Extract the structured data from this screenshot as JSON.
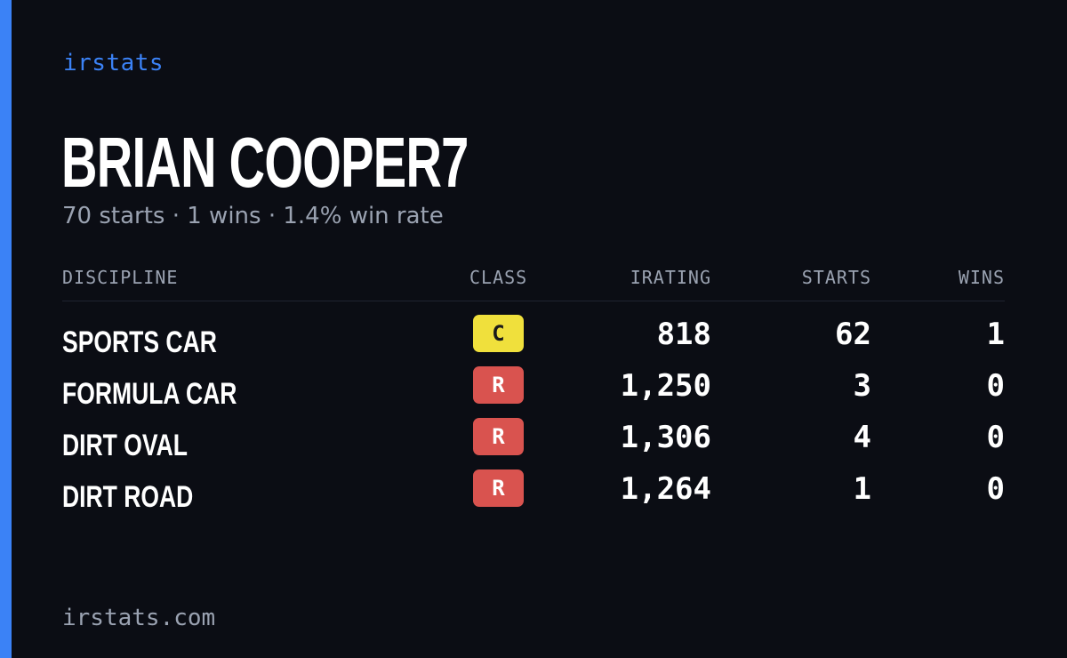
{
  "brand": "irstats",
  "accent_color": "#3b82f6",
  "player": {
    "name": "BRIAN COOPER7"
  },
  "summary": {
    "starts": "70 starts",
    "wins": "1 wins",
    "win_rate": "1.4% win rate",
    "separator": "·"
  },
  "table": {
    "headers": {
      "discipline": "DISCIPLINE",
      "class": "CLASS",
      "irating": "IRATING",
      "starts": "STARTS",
      "wins": "WINS"
    },
    "rows": [
      {
        "discipline": "SPORTS CAR",
        "class": "C",
        "class_color": "#f0e03c",
        "irating": "818",
        "starts": "62",
        "wins": "1"
      },
      {
        "discipline": "FORMULA CAR",
        "class": "R",
        "class_color": "#d9534f",
        "irating": "1,250",
        "starts": "3",
        "wins": "0"
      },
      {
        "discipline": "DIRT OVAL",
        "class": "R",
        "class_color": "#d9534f",
        "irating": "1,306",
        "starts": "4",
        "wins": "0"
      },
      {
        "discipline": "DIRT ROAD",
        "class": "R",
        "class_color": "#d9534f",
        "irating": "1,264",
        "starts": "1",
        "wins": "0"
      }
    ]
  },
  "footer": {
    "url": "irstats.com"
  }
}
